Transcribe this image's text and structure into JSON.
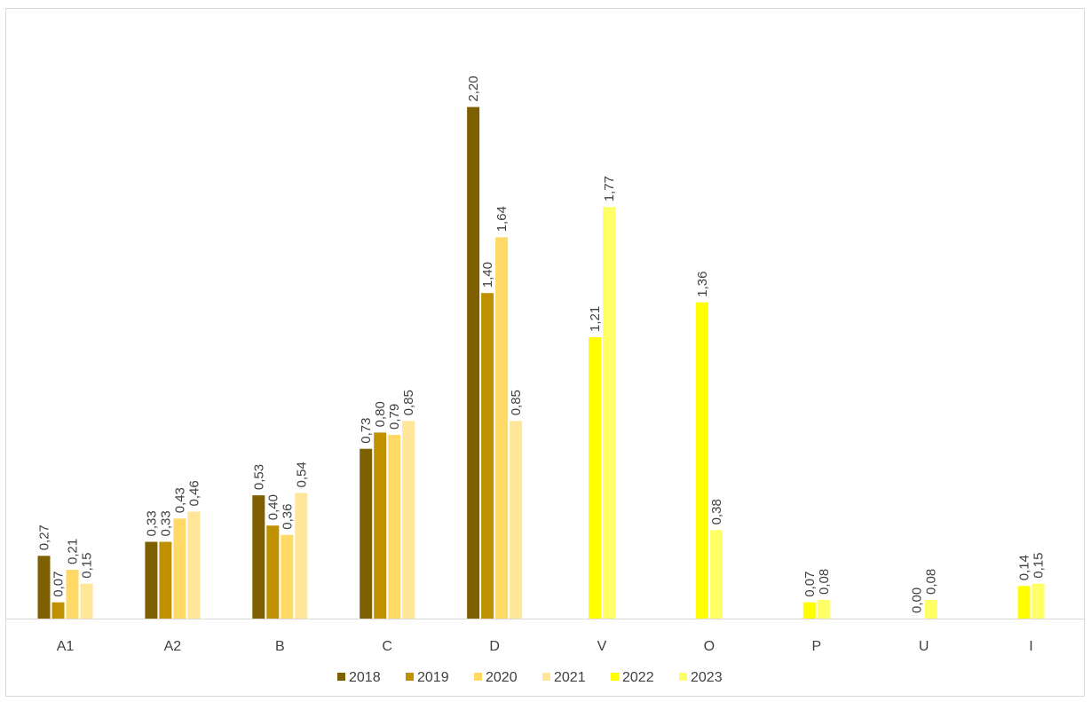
{
  "chart_data": {
    "type": "bar",
    "categories": [
      "A1",
      "A2",
      "B",
      "C",
      "D",
      "V",
      "O",
      "P",
      "U",
      "I"
    ],
    "series": [
      {
        "name": "2018",
        "color": "#7f6000",
        "values": [
          0.27,
          0.33,
          0.53,
          0.73,
          2.2,
          null,
          null,
          null,
          null,
          null
        ]
      },
      {
        "name": "2019",
        "color": "#bf9000",
        "values": [
          0.07,
          0.33,
          0.4,
          0.8,
          1.4,
          null,
          null,
          null,
          null,
          null
        ]
      },
      {
        "name": "2020",
        "color": "#ffd966",
        "values": [
          0.21,
          0.43,
          0.36,
          0.79,
          1.64,
          null,
          null,
          null,
          null,
          null
        ]
      },
      {
        "name": "2021",
        "color": "#ffe699",
        "values": [
          0.15,
          0.46,
          0.54,
          0.85,
          0.85,
          null,
          null,
          null,
          null,
          null
        ]
      },
      {
        "name": "2022",
        "color": "#ffff00",
        "values": [
          null,
          null,
          null,
          null,
          null,
          1.21,
          1.36,
          0.07,
          0.0,
          0.14
        ]
      },
      {
        "name": "2023",
        "color": "#ffff66",
        "values": [
          null,
          null,
          null,
          null,
          null,
          1.77,
          0.38,
          0.08,
          0.08,
          0.15
        ]
      }
    ],
    "value_labels": [
      [
        "0,27",
        "0,33",
        "0,53",
        "0,73",
        "2,20",
        "",
        "",
        "",
        "",
        ""
      ],
      [
        "0,07",
        "0,33",
        "0,40",
        "0,80",
        "1,40",
        "",
        "",
        "",
        "",
        ""
      ],
      [
        "0,21",
        "0,43",
        "0,36",
        "0,79",
        "1,64",
        "",
        "",
        "",
        "",
        ""
      ],
      [
        "0,15",
        "0,46",
        "0,54",
        "0,85",
        "0,85",
        "",
        "",
        "",
        "",
        ""
      ],
      [
        "",
        "",
        "",
        "",
        "",
        "1,21",
        "1,36",
        "0,07",
        "0,00",
        "0,14"
      ],
      [
        "",
        "",
        "",
        "",
        "",
        "1,77",
        "0,38",
        "0,08",
        "0,08",
        "0,15"
      ]
    ],
    "title": "",
    "xlabel": "",
    "ylabel": "",
    "ylim": [
      0,
      2.2
    ],
    "grid": false,
    "legend_position": "bottom",
    "data_labels_rotation": "vertical"
  }
}
